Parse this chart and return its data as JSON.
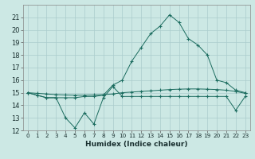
{
  "xlabel": "Humidex (Indice chaleur)",
  "x_values": [
    0,
    1,
    2,
    3,
    4,
    5,
    6,
    7,
    8,
    9,
    10,
    11,
    12,
    13,
    14,
    15,
    16,
    17,
    18,
    19,
    20,
    21,
    22,
    23
  ],
  "line1_y": [
    15.0,
    14.8,
    14.6,
    14.6,
    13.0,
    12.2,
    13.4,
    12.5,
    14.6,
    15.5,
    14.7,
    14.7,
    14.7,
    14.7,
    14.7,
    14.7,
    14.7,
    14.7,
    14.7,
    14.7,
    14.7,
    14.7,
    13.6,
    14.7
  ],
  "line2_y": [
    15.0,
    14.8,
    14.6,
    14.6,
    14.6,
    14.6,
    14.7,
    14.7,
    14.8,
    15.6,
    16.0,
    17.5,
    18.6,
    19.7,
    20.3,
    21.2,
    20.6,
    19.3,
    18.8,
    18.0,
    16.0,
    15.8,
    15.2,
    15.0
  ],
  "line3_y": [
    15.0,
    14.95,
    14.9,
    14.85,
    14.82,
    14.8,
    14.8,
    14.82,
    14.85,
    14.9,
    15.0,
    15.05,
    15.1,
    15.15,
    15.2,
    15.25,
    15.28,
    15.3,
    15.3,
    15.28,
    15.25,
    15.2,
    15.1,
    14.95
  ],
  "ylim": [
    12,
    22
  ],
  "yticks": [
    12,
    13,
    14,
    15,
    16,
    17,
    18,
    19,
    20,
    21
  ],
  "xlim": [
    -0.5,
    23.5
  ],
  "bg_color": "#cce8e4",
  "grid_color": "#aacccc",
  "line_color": "#1a6b5e",
  "tick_color": "#1a3030",
  "xlabel_fontsize": 6.5,
  "ytick_fontsize": 6.0,
  "xtick_fontsize": 5.2
}
